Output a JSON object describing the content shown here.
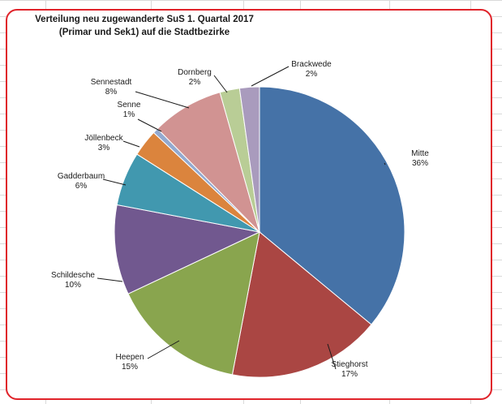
{
  "chart_data": {
    "type": "pie",
    "title_line1": "Verteilung neu zugewanderte  SuS 1. Quartal  2017",
    "title_line2": "(Primar und Sek1) auf die Stadtbezirke",
    "slices": [
      {
        "label": "Mitte",
        "value": 36,
        "display": "36%",
        "color": "#4572a7"
      },
      {
        "label": "Stieghorst",
        "value": 17,
        "display": "17%",
        "color": "#aa4643"
      },
      {
        "label": "Heepen",
        "value": 15,
        "display": "15%",
        "color": "#89a54e"
      },
      {
        "label": "Schildesche",
        "value": 10,
        "display": "10%",
        "color": "#71588f"
      },
      {
        "label": "Gadderbaum",
        "value": 6,
        "display": "6%",
        "color": "#4198af"
      },
      {
        "label": "Jöllenbeck",
        "value": 3,
        "display": "3%",
        "color": "#db843d"
      },
      {
        "label": "Senne",
        "value": 0.6,
        "display": "1%",
        "color": "#93a9cf"
      },
      {
        "label": "Sennestadt",
        "value": 8,
        "display": "8%",
        "color": "#d19392"
      },
      {
        "label": "Dornberg",
        "value": 2.2,
        "display": "2%",
        "color": "#b9cd96"
      },
      {
        "label": "Brackwede",
        "value": 2.2,
        "display": "2%",
        "color": "#a99bbd"
      }
    ]
  }
}
